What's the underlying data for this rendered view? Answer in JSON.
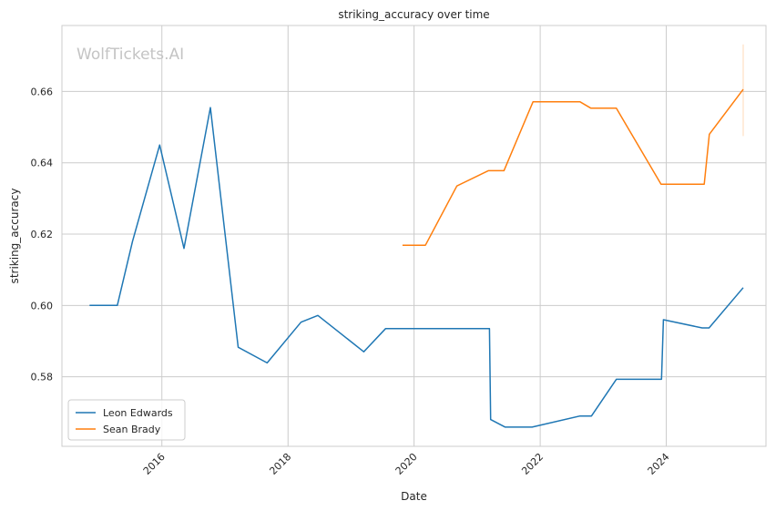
{
  "chart_data": {
    "type": "line",
    "title": "striking_accuracy over time",
    "xlabel": "Date",
    "ylabel": "striking_accuracy",
    "watermark": "WolfTickets.AI",
    "xlim": [
      "2014-06-01",
      "2025-08-01"
    ],
    "ylim": [
      0.5605,
      0.6785
    ],
    "x_ticks": [
      "2016-01-01",
      "2018-01-01",
      "2020-01-01",
      "2022-01-01",
      "2024-01-01"
    ],
    "x_tick_labels": [
      "2016",
      "2018",
      "2020",
      "2022",
      "2024"
    ],
    "y_ticks": [
      0.58,
      0.6,
      0.62,
      0.64,
      0.66
    ],
    "y_tick_labels": [
      "0.58",
      "0.60",
      "0.62",
      "0.64",
      "0.66"
    ],
    "grid": true,
    "legend_position": "lower-left",
    "series": [
      {
        "name": "Leon Edwards",
        "color": "#1f77b4",
        "x": [
          "2014-11-08",
          "2015-04-18",
          "2015-07-15",
          "2015-12-19",
          "2016-05-08",
          "2016-10-08",
          "2017-03-18",
          "2017-09-02",
          "2018-03-17",
          "2018-06-23",
          "2019-03-16",
          "2019-07-20",
          "2021-03-13",
          "2021-03-20",
          "2021-06-12",
          "2021-11-15",
          "2022-08-20",
          "2022-10-25",
          "2023-03-18",
          "2023-12-05",
          "2023-12-16",
          "2024-07-27",
          "2024-09-05",
          "2025-03-22"
        ],
        "values": [
          0.6,
          0.6,
          0.618,
          0.645,
          0.616,
          0.6555,
          0.5883,
          0.5839,
          0.5953,
          0.5972,
          0.587,
          0.5935,
          0.5935,
          0.568,
          0.5659,
          0.5659,
          0.569,
          0.569,
          0.5793,
          0.5793,
          0.596,
          0.5937,
          0.5937,
          0.605
        ]
      },
      {
        "name": "Sean Brady",
        "color": "#ff7f0e",
        "x": [
          "2019-10-26",
          "2020-03-07",
          "2020-09-05",
          "2021-03-06",
          "2021-06-05",
          "2021-11-20",
          "2022-08-20",
          "2022-10-22",
          "2023-03-18",
          "2023-12-02",
          "2024-08-08",
          "2024-09-07",
          "2025-03-22"
        ],
        "values": [
          0.6169,
          0.6169,
          0.6335,
          0.6378,
          0.6378,
          0.6571,
          0.6571,
          0.6553,
          0.6553,
          0.634,
          0.634,
          0.648,
          0.6606
        ],
        "error_band": {
          "x": "2025-03-22",
          "low": 0.6475,
          "high": 0.6732
        }
      }
    ]
  }
}
